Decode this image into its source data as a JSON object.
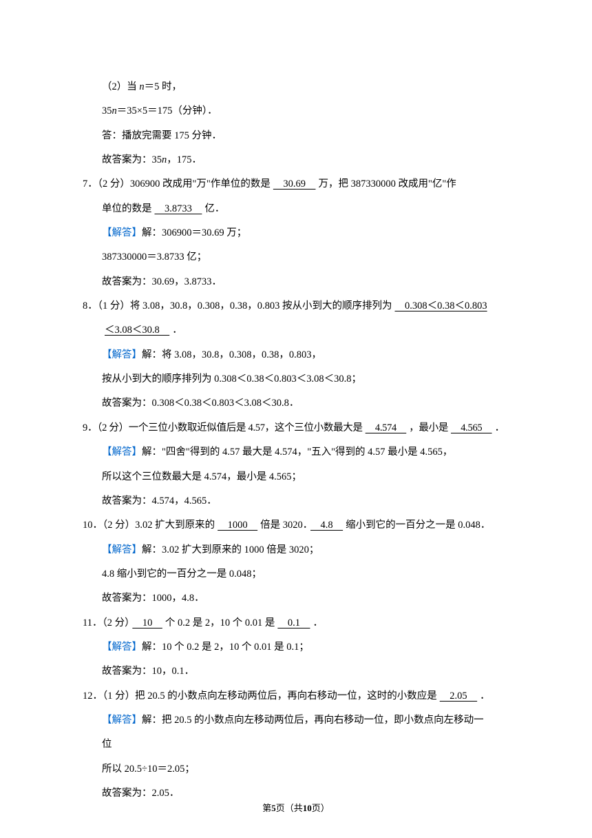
{
  "colors": {
    "text": "#000000",
    "link": "#0066cc",
    "background": "#ffffff"
  },
  "typography": {
    "body_fontsize": 14.5,
    "footer_fontsize": 13,
    "line_height": 2.3,
    "font_family": "SimSun"
  },
  "answer_label": "【解答】",
  "q6_tail": {
    "l1": "（2）当 ",
    "l1_var": "n",
    "l1_b": "＝5 时，",
    "l2a": "35",
    "l2_var": "n",
    "l2b": "＝35×5＝175（分钟）．",
    "l3": "答：播放完需要 175 分钟．",
    "l4a": "故答案为：35",
    "l4_var": "n",
    "l4b": "，175．"
  },
  "q7": {
    "stem_a": "7．（2 分）306900 改成用\"万\"作单位的数是",
    "blank1": "　30.69　",
    "stem_b": "万，把 387330000 改成用\"亿\"作",
    "stem_c": "单位的数是",
    "blank2": "　3.8733　",
    "stem_d": "亿．",
    "ans1": "解：306900＝30.69 万；",
    "ans2": "387330000＝3.8733 亿；",
    "ans3": "故答案为：30.69，3.8733．"
  },
  "q8": {
    "stem_a": "8．（1 分）将 3.08，30.8，0.308，0.38，0.803 按从小到大的顺序排列为",
    "blank1": "　0.308＜0.38＜0.803",
    "blank2": "＜3.08＜30.8　",
    "stem_b": "．",
    "ans1": "解：将 3.08，30.8，0.308，0.38，0.803，",
    "ans2": "按从小到大的顺序排列为 0.308＜0.38＜0.803＜3.08＜30.8；",
    "ans3": "故答案为：0.308＜0.38＜0.803＜3.08＜30.8．"
  },
  "q9": {
    "stem_a": "9．（2 分）一个三位小数取近似值后是 4.57，这个三位小数最大是",
    "blank1": "　4.574　",
    "stem_b": "，最小是",
    "blank2": "　4.565　",
    "stem_c": "．",
    "ans1": "解：\"四舍\"得到的 4.57 最大是 4.574，\"五入\"得到的 4.57 最小是 4.565，",
    "ans2": "所以这个三位数最大是 4.574，最小是 4.565；",
    "ans3": "故答案为：4.574，4.565．"
  },
  "q10": {
    "stem_a": "10．（2 分）3.02 扩大到原来的",
    "blank1": "　1000　",
    "stem_b": "倍是 3020．",
    "blank2": "　4.8　",
    "stem_c": "缩小到它的一百分之一是 0.048．",
    "ans1": "解：3.02 扩大到原来的 1000 倍是 3020；",
    "ans2": "4.8 缩小到它的一百分之一是 0.048；",
    "ans3": "故答案为：1000，4.8．"
  },
  "q11": {
    "stem_a": "11．（2 分）",
    "blank1": "　10　",
    "stem_b": "个 0.2 是 2，10 个 0.01 是",
    "blank2": "　0.1　",
    "stem_c": "．",
    "ans1": "解：10 个 0.2 是 2，10 个 0.01 是 0.1；",
    "ans2": "故答案为：10，0.1．"
  },
  "q12": {
    "stem_a": "12．（1 分）把 20.5 的小数点向左移动两位后，再向右移动一位，这时的小数应是",
    "blank1": "　2.05　",
    "stem_b": "．",
    "ans1": "解：把 20.5 的小数点向左移动两位后，再向右移动一位，即小数点向左移动一",
    "ans2": "位",
    "ans3": "所以 20.5÷10＝2.05；",
    "ans4": "故答案为：2.05．"
  },
  "footer": {
    "a": "第",
    "page_current": "5",
    "b": "页（共",
    "page_total": "10",
    "c": "页）"
  }
}
